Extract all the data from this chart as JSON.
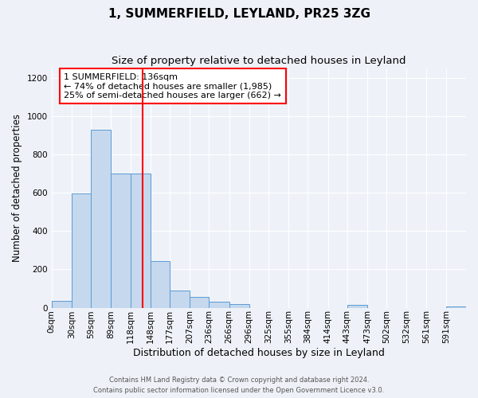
{
  "title": "1, SUMMERFIELD, LEYLAND, PR25 3ZG",
  "subtitle": "Size of property relative to detached houses in Leyland",
  "xlabel": "Distribution of detached houses by size in Leyland",
  "ylabel": "Number of detached properties",
  "bin_labels": [
    "0sqm",
    "30sqm",
    "59sqm",
    "89sqm",
    "118sqm",
    "148sqm",
    "177sqm",
    "207sqm",
    "236sqm",
    "266sqm",
    "296sqm",
    "325sqm",
    "355sqm",
    "384sqm",
    "414sqm",
    "443sqm",
    "473sqm",
    "502sqm",
    "532sqm",
    "561sqm",
    "591sqm"
  ],
  "bin_edges": [
    0,
    30,
    59,
    89,
    118,
    148,
    177,
    207,
    236,
    266,
    296,
    325,
    355,
    384,
    414,
    443,
    473,
    502,
    532,
    561,
    591,
    621
  ],
  "bar_heights": [
    35,
    595,
    930,
    700,
    700,
    245,
    90,
    55,
    30,
    20,
    0,
    0,
    0,
    0,
    0,
    15,
    0,
    0,
    0,
    0,
    5
  ],
  "bar_color": "#c5d8ed",
  "bar_edge_color": "#5b9bd5",
  "vline_x": 136,
  "vline_color": "red",
  "ylim": [
    0,
    1250
  ],
  "yticks": [
    0,
    200,
    400,
    600,
    800,
    1000,
    1200
  ],
  "annotation_text": "1 SUMMERFIELD: 136sqm\n← 74% of detached houses are smaller (1,985)\n25% of semi-detached houses are larger (662) →",
  "annotation_box_color": "white",
  "annotation_box_edge_color": "red",
  "footer_line1": "Contains HM Land Registry data © Crown copyright and database right 2024.",
  "footer_line2": "Contains public sector information licensed under the Open Government Licence v3.0.",
  "background_color": "#eef2f8",
  "grid_color": "white",
  "title_fontsize": 11,
  "subtitle_fontsize": 9.5,
  "xlabel_fontsize": 9,
  "ylabel_fontsize": 8.5
}
